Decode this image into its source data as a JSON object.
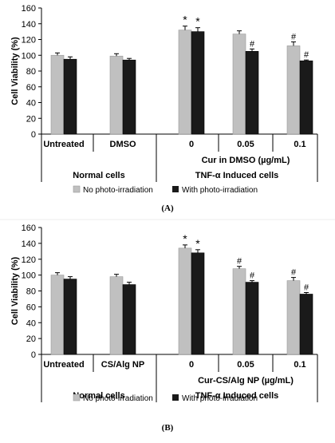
{
  "figure": {
    "panels": [
      {
        "label": "(A)",
        "ylabel": "Cell Viability  (%)",
        "ylim": [
          0,
          160
        ],
        "ytick_step": 20,
        "categories": [
          "Untreated",
          "DMSO",
          "0",
          "0.05",
          "0.1"
        ],
        "group_labels": [
          "Normal cells",
          "TNF-α Induced cells"
        ],
        "sub_label": "Cur in DMSO (µg/mL)",
        "legend": [
          "No photo-irradiation",
          "With photo-irradiation"
        ],
        "annotations": [
          [
            "",
            ""
          ],
          [
            "",
            ""
          ],
          [
            "*",
            "*"
          ],
          [
            "",
            "#"
          ],
          [
            "#",
            "#"
          ]
        ]
      },
      {
        "label": "(B)",
        "ylabel": "Cell Viability  (%)",
        "ylim": [
          0,
          160
        ],
        "ytick_step": 20,
        "categories": [
          "Untreated",
          "CS/Alg NP",
          "0",
          "0.05",
          "0.1"
        ],
        "group_labels": [
          "Normal cells",
          "TNF-α Induced cells"
        ],
        "sub_label": "Cur-CS/Alg NP (µg/mL)",
        "legend": [
          "No photo-irradiation",
          "With photo-irradiation"
        ],
        "annotations": [
          [
            "",
            ""
          ],
          [
            "",
            ""
          ],
          [
            "*",
            "*"
          ],
          [
            "#",
            "#"
          ],
          [
            "#",
            "#"
          ]
        ]
      }
    ]
  },
  "chart_data": [
    {
      "type": "bar",
      "title": "",
      "xlabel": "",
      "ylabel": "Cell Viability  (%)",
      "ylim": [
        0,
        160
      ],
      "grid": false,
      "legend_position": "bottom",
      "categories": [
        "Untreated",
        "DMSO",
        "0",
        "0.05",
        "0.1"
      ],
      "series": [
        {
          "name": "No photo-irradiation",
          "color": "#c0c0c0",
          "values": [
            100,
            99,
            132,
            127,
            112
          ],
          "errors": [
            3,
            3,
            5,
            4,
            5
          ]
        },
        {
          "name": "With photo-irradiation",
          "color": "#1a1a1a",
          "values": [
            95,
            94,
            130,
            105,
            93
          ],
          "errors": [
            3,
            2,
            5,
            3,
            1
          ]
        }
      ]
    },
    {
      "type": "bar",
      "title": "",
      "xlabel": "",
      "ylabel": "Cell Viability  (%)",
      "ylim": [
        0,
        160
      ],
      "grid": false,
      "legend_position": "bottom",
      "categories": [
        "Untreated",
        "CS/Alg NP",
        "0",
        "0.05",
        "0.1"
      ],
      "series": [
        {
          "name": "No photo-irradiation",
          "color": "#c0c0c0",
          "values": [
            100,
            98,
            134,
            108,
            93
          ],
          "errors": [
            3,
            3,
            4,
            3,
            4
          ]
        },
        {
          "name": "With photo-irradiation",
          "color": "#1a1a1a",
          "values": [
            95,
            88,
            128,
            91,
            76
          ],
          "errors": [
            3,
            3,
            4,
            2,
            2
          ]
        }
      ]
    }
  ]
}
